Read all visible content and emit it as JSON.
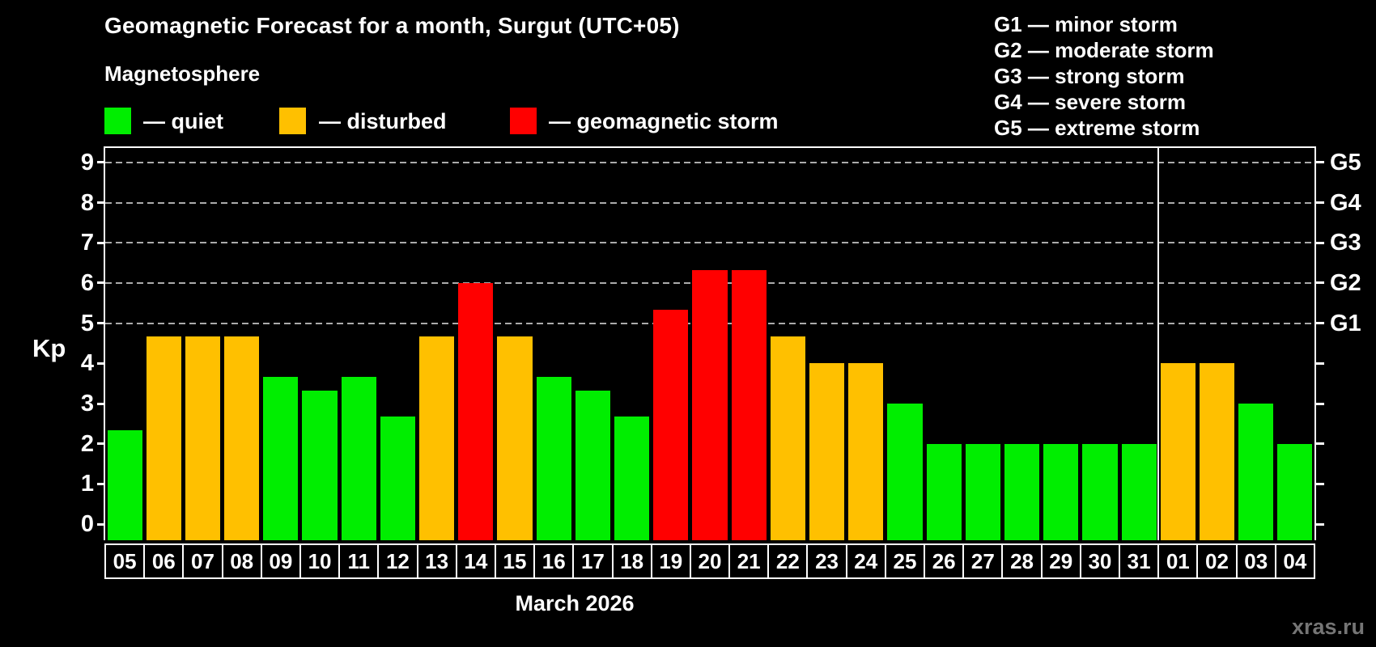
{
  "header": {
    "title": "Geomagnetic Forecast for a month, Surgut (UTC+05)",
    "legend_title": "Magnetosphere"
  },
  "legend": {
    "items": [
      {
        "name": "quiet",
        "label": "— quiet",
        "color": "#00ee00"
      },
      {
        "name": "disturbed",
        "label": "— disturbed",
        "color": "#ffc000"
      },
      {
        "name": "storm",
        "label": "— geomagnetic storm",
        "color": "#ff0000"
      }
    ]
  },
  "storm_scale_legend": {
    "items": [
      "G1 — minor storm",
      "G2 — moderate storm",
      "G3 — strong storm",
      "G4 — severe storm",
      "G5 — extreme storm"
    ]
  },
  "axes": {
    "y_title": "Kp",
    "y_ticks": [
      0,
      1,
      2,
      3,
      4,
      5,
      6,
      7,
      8,
      9
    ],
    "right_scale": [
      {
        "kp": 5,
        "label": "G1"
      },
      {
        "kp": 6,
        "label": "G2"
      },
      {
        "kp": 7,
        "label": "G3"
      },
      {
        "kp": 8,
        "label": "G4"
      },
      {
        "kp": 9,
        "label": "G5"
      }
    ],
    "x_title": "March 2026"
  },
  "footer": {
    "watermark": "xras.ru"
  },
  "chart_data": {
    "type": "bar",
    "title": "Geomagnetic Forecast for a month, Surgut (UTC+05)",
    "xlabel": "March 2026",
    "ylabel": "Kp",
    "ylim": [
      0,
      9
    ],
    "grid_levels": [
      5,
      6,
      7,
      8,
      9
    ],
    "legend_position": "top",
    "month_separator_after_index": 26,
    "categories": [
      "05",
      "06",
      "07",
      "08",
      "09",
      "10",
      "11",
      "12",
      "13",
      "14",
      "15",
      "16",
      "17",
      "18",
      "19",
      "20",
      "21",
      "22",
      "23",
      "24",
      "25",
      "26",
      "27",
      "28",
      "29",
      "30",
      "31",
      "01",
      "02",
      "03",
      "04"
    ],
    "values": [
      2.33,
      4.67,
      4.67,
      4.67,
      3.67,
      3.33,
      3.67,
      2.67,
      4.67,
      6.0,
      4.67,
      3.67,
      3.33,
      2.67,
      5.33,
      6.33,
      6.33,
      4.67,
      4.0,
      4.0,
      3.0,
      2.0,
      2.0,
      2.0,
      2.0,
      2.0,
      2.0,
      4.0,
      4.0,
      3.0,
      2.0
    ],
    "statuses": [
      "quiet",
      "disturbed",
      "disturbed",
      "disturbed",
      "quiet",
      "quiet",
      "quiet",
      "quiet",
      "disturbed",
      "storm",
      "disturbed",
      "quiet",
      "quiet",
      "quiet",
      "storm",
      "storm",
      "storm",
      "disturbed",
      "disturbed",
      "disturbed",
      "quiet",
      "quiet",
      "quiet",
      "quiet",
      "quiet",
      "quiet",
      "quiet",
      "disturbed",
      "disturbed",
      "quiet",
      "quiet"
    ],
    "colors": {
      "quiet": "#00ee00",
      "disturbed": "#ffc000",
      "storm": "#ff0000"
    }
  }
}
